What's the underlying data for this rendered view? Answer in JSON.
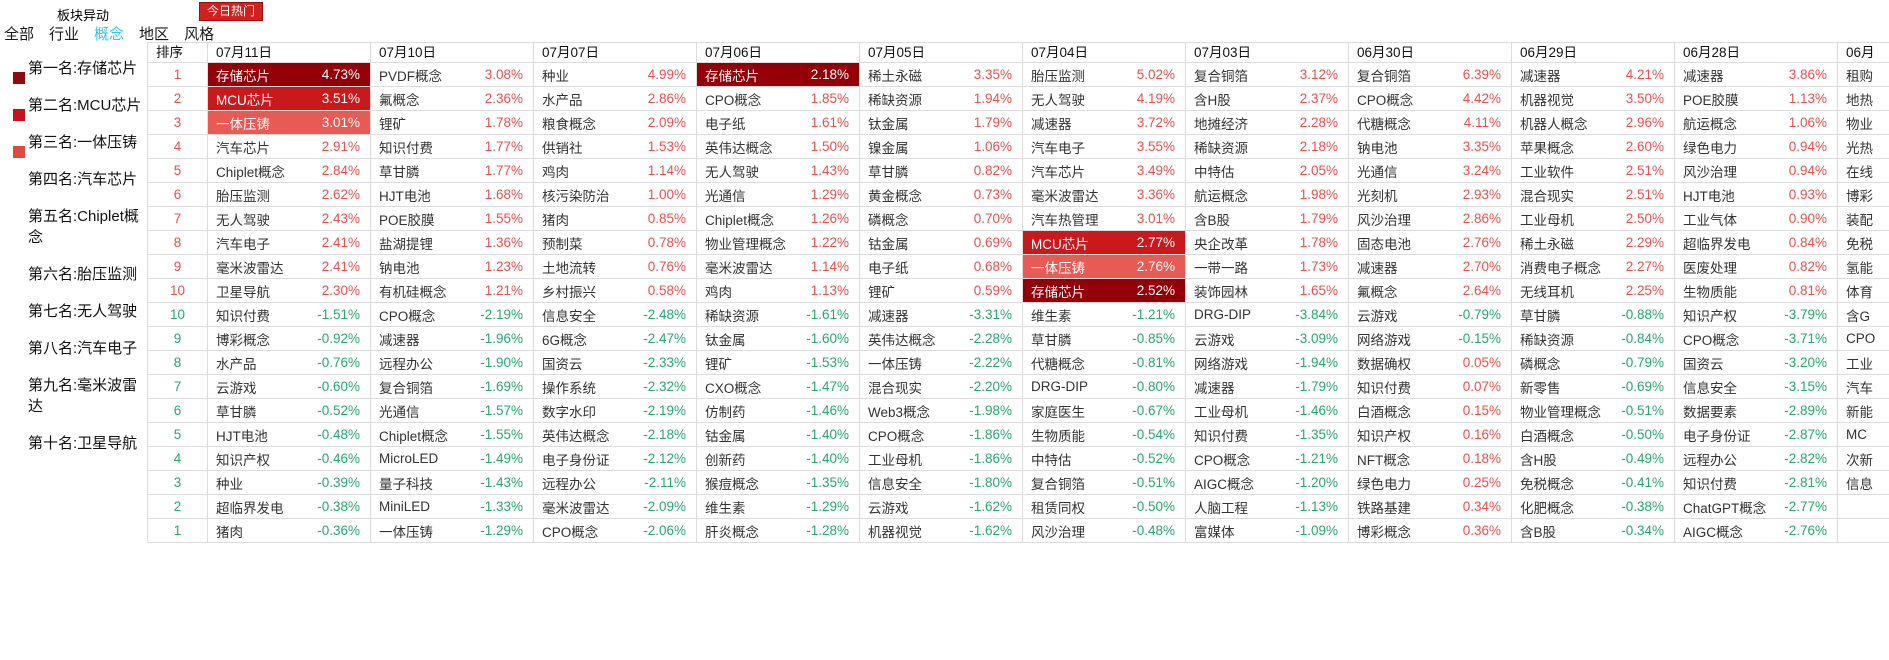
{
  "page": {
    "title": "板块异动",
    "hot_badge": "今日热门"
  },
  "tabs": [
    {
      "label": "全部",
      "active": false
    },
    {
      "label": "行业",
      "active": false
    },
    {
      "label": "概念",
      "active": true
    },
    {
      "label": "地区",
      "active": false
    },
    {
      "label": "风格",
      "active": false
    }
  ],
  "sidebar": {
    "items": [
      {
        "label": "第一名:存储芯片"
      },
      {
        "label": "第二名:MCU芯片"
      },
      {
        "label": "第三名:一体压铸"
      },
      {
        "label": "第四名:汽车芯片"
      },
      {
        "label": "第五名:Chiplet概念"
      },
      {
        "label": "第六名:胎压监测"
      },
      {
        "label": "第七名:无人驾驶"
      },
      {
        "label": "第八名:汽车电子"
      },
      {
        "label": "第九名:毫米波雷达"
      },
      {
        "label": "第十名:卫星导航"
      }
    ]
  },
  "table": {
    "rank_header": "排序",
    "ranks_up": [
      "1",
      "2",
      "3",
      "4",
      "5",
      "6",
      "7",
      "8",
      "9",
      "10"
    ],
    "ranks_down": [
      "10",
      "9",
      "8",
      "7",
      "6",
      "5",
      "4",
      "3",
      "2",
      "1"
    ],
    "columns": [
      {
        "date": "07月11日",
        "up": [
          {
            "n": "存储芯片",
            "v": "4.73%",
            "hl": "dark"
          },
          {
            "n": "MCU芯片",
            "v": "3.51%",
            "hl": "mid"
          },
          {
            "n": "一体压铸",
            "v": "3.01%",
            "hl": "light"
          },
          {
            "n": "汽车芯片",
            "v": "2.91%"
          },
          {
            "n": "Chiplet概念",
            "v": "2.84%"
          },
          {
            "n": "胎压监测",
            "v": "2.62%"
          },
          {
            "n": "无人驾驶",
            "v": "2.43%"
          },
          {
            "n": "汽车电子",
            "v": "2.41%"
          },
          {
            "n": "毫米波雷达",
            "v": "2.41%"
          },
          {
            "n": "卫星导航",
            "v": "2.30%"
          }
        ],
        "down": [
          {
            "n": "知识付费",
            "v": "-1.51%"
          },
          {
            "n": "博彩概念",
            "v": "-0.92%"
          },
          {
            "n": "水产品",
            "v": "-0.76%"
          },
          {
            "n": "云游戏",
            "v": "-0.60%"
          },
          {
            "n": "草甘膦",
            "v": "-0.52%"
          },
          {
            "n": "HJT电池",
            "v": "-0.48%"
          },
          {
            "n": "知识产权",
            "v": "-0.46%"
          },
          {
            "n": "种业",
            "v": "-0.39%"
          },
          {
            "n": "超临界发电",
            "v": "-0.38%"
          },
          {
            "n": "猪肉",
            "v": "-0.36%"
          }
        ]
      },
      {
        "date": "07月10日",
        "up": [
          {
            "n": "PVDF概念",
            "v": "3.08%"
          },
          {
            "n": "氟概念",
            "v": "2.36%"
          },
          {
            "n": "锂矿",
            "v": "1.78%"
          },
          {
            "n": "知识付费",
            "v": "1.77%"
          },
          {
            "n": "草甘膦",
            "v": "1.77%"
          },
          {
            "n": "HJT电池",
            "v": "1.68%"
          },
          {
            "n": "POE胶膜",
            "v": "1.55%"
          },
          {
            "n": "盐湖提锂",
            "v": "1.36%"
          },
          {
            "n": "钠电池",
            "v": "1.23%"
          },
          {
            "n": "有机硅概念",
            "v": "1.21%"
          }
        ],
        "down": [
          {
            "n": "CPO概念",
            "v": "-2.19%"
          },
          {
            "n": "减速器",
            "v": "-1.96%"
          },
          {
            "n": "远程办公",
            "v": "-1.90%"
          },
          {
            "n": "复合铜箔",
            "v": "-1.69%"
          },
          {
            "n": "光通信",
            "v": "-1.57%"
          },
          {
            "n": "Chiplet概念",
            "v": "-1.55%"
          },
          {
            "n": "MicroLED",
            "v": "-1.49%"
          },
          {
            "n": "量子科技",
            "v": "-1.43%"
          },
          {
            "n": "MiniLED",
            "v": "-1.33%"
          },
          {
            "n": "一体压铸",
            "v": "-1.29%"
          }
        ]
      },
      {
        "date": "07月07日",
        "up": [
          {
            "n": "种业",
            "v": "4.99%"
          },
          {
            "n": "水产品",
            "v": "2.86%"
          },
          {
            "n": "粮食概念",
            "v": "2.09%"
          },
          {
            "n": "供销社",
            "v": "1.53%"
          },
          {
            "n": "鸡肉",
            "v": "1.14%"
          },
          {
            "n": "核污染防治",
            "v": "1.00%"
          },
          {
            "n": "猪肉",
            "v": "0.85%"
          },
          {
            "n": "预制菜",
            "v": "0.78%"
          },
          {
            "n": "土地流转",
            "v": "0.76%"
          },
          {
            "n": "乡村振兴",
            "v": "0.58%"
          }
        ],
        "down": [
          {
            "n": "信息安全",
            "v": "-2.48%"
          },
          {
            "n": "6G概念",
            "v": "-2.47%"
          },
          {
            "n": "国资云",
            "v": "-2.33%"
          },
          {
            "n": "操作系统",
            "v": "-2.32%"
          },
          {
            "n": "数字水印",
            "v": "-2.19%"
          },
          {
            "n": "英伟达概念",
            "v": "-2.18%"
          },
          {
            "n": "电子身份证",
            "v": "-2.12%"
          },
          {
            "n": "远程办公",
            "v": "-2.11%"
          },
          {
            "n": "毫米波雷达",
            "v": "-2.09%"
          },
          {
            "n": "CPO概念",
            "v": "-2.06%"
          }
        ]
      },
      {
        "date": "07月06日",
        "up": [
          {
            "n": "存储芯片",
            "v": "2.18%",
            "hl": "dark"
          },
          {
            "n": "CPO概念",
            "v": "1.85%"
          },
          {
            "n": "电子纸",
            "v": "1.61%"
          },
          {
            "n": "英伟达概念",
            "v": "1.50%"
          },
          {
            "n": "无人驾驶",
            "v": "1.43%"
          },
          {
            "n": "光通信",
            "v": "1.29%"
          },
          {
            "n": "Chiplet概念",
            "v": "1.26%"
          },
          {
            "n": "物业管理概念",
            "v": "1.22%"
          },
          {
            "n": "毫米波雷达",
            "v": "1.14%"
          },
          {
            "n": "鸡肉",
            "v": "1.13%"
          }
        ],
        "down": [
          {
            "n": "稀缺资源",
            "v": "-1.61%"
          },
          {
            "n": "钛金属",
            "v": "-1.60%"
          },
          {
            "n": "锂矿",
            "v": "-1.53%"
          },
          {
            "n": "CXO概念",
            "v": "-1.47%"
          },
          {
            "n": "仿制药",
            "v": "-1.46%"
          },
          {
            "n": "钴金属",
            "v": "-1.40%"
          },
          {
            "n": "创新药",
            "v": "-1.40%"
          },
          {
            "n": "猴痘概念",
            "v": "-1.35%"
          },
          {
            "n": "维生素",
            "v": "-1.29%"
          },
          {
            "n": "肝炎概念",
            "v": "-1.28%"
          }
        ]
      },
      {
        "date": "07月05日",
        "up": [
          {
            "n": "稀土永磁",
            "v": "3.35%"
          },
          {
            "n": "稀缺资源",
            "v": "1.94%"
          },
          {
            "n": "钛金属",
            "v": "1.79%"
          },
          {
            "n": "镍金属",
            "v": "1.06%"
          },
          {
            "n": "草甘膦",
            "v": "0.82%"
          },
          {
            "n": "黄金概念",
            "v": "0.73%"
          },
          {
            "n": "磷概念",
            "v": "0.70%"
          },
          {
            "n": "钴金属",
            "v": "0.69%"
          },
          {
            "n": "电子纸",
            "v": "0.68%"
          },
          {
            "n": "锂矿",
            "v": "0.59%"
          }
        ],
        "down": [
          {
            "n": "减速器",
            "v": "-3.31%"
          },
          {
            "n": "英伟达概念",
            "v": "-2.28%"
          },
          {
            "n": "一体压铸",
            "v": "-2.22%"
          },
          {
            "n": "混合现实",
            "v": "-2.20%"
          },
          {
            "n": "Web3概念",
            "v": "-1.98%"
          },
          {
            "n": "CPO概念",
            "v": "-1.86%"
          },
          {
            "n": "工业母机",
            "v": "-1.86%"
          },
          {
            "n": "信息安全",
            "v": "-1.80%"
          },
          {
            "n": "云游戏",
            "v": "-1.62%"
          },
          {
            "n": "机器视觉",
            "v": "-1.62%"
          }
        ]
      },
      {
        "date": "07月04日",
        "up": [
          {
            "n": "胎压监测",
            "v": "5.02%"
          },
          {
            "n": "无人驾驶",
            "v": "4.19%"
          },
          {
            "n": "减速器",
            "v": "3.72%"
          },
          {
            "n": "汽车电子",
            "v": "3.55%"
          },
          {
            "n": "汽车芯片",
            "v": "3.49%"
          },
          {
            "n": "毫米波雷达",
            "v": "3.36%"
          },
          {
            "n": "汽车热管理",
            "v": "3.01%"
          },
          {
            "n": "MCU芯片",
            "v": "2.77%",
            "hl": "mid"
          },
          {
            "n": "一体压铸",
            "v": "2.76%",
            "hl": "light"
          },
          {
            "n": "存储芯片",
            "v": "2.52%",
            "hl": "dark"
          }
        ],
        "down": [
          {
            "n": "维生素",
            "v": "-1.21%"
          },
          {
            "n": "草甘膦",
            "v": "-0.85%"
          },
          {
            "n": "代糖概念",
            "v": "-0.81%"
          },
          {
            "n": "DRG-DIP",
            "v": "-0.80%"
          },
          {
            "n": "家庭医生",
            "v": "-0.67%"
          },
          {
            "n": "生物质能",
            "v": "-0.54%"
          },
          {
            "n": "中特估",
            "v": "-0.52%"
          },
          {
            "n": "复合铜箔",
            "v": "-0.51%"
          },
          {
            "n": "租赁同权",
            "v": "-0.50%"
          },
          {
            "n": "风沙治理",
            "v": "-0.48%"
          }
        ]
      },
      {
        "date": "07月03日",
        "up": [
          {
            "n": "复合铜箔",
            "v": "3.12%"
          },
          {
            "n": "含H股",
            "v": "2.37%"
          },
          {
            "n": "地摊经济",
            "v": "2.28%"
          },
          {
            "n": "稀缺资源",
            "v": "2.18%"
          },
          {
            "n": "中特估",
            "v": "2.05%"
          },
          {
            "n": "航运概念",
            "v": "1.98%"
          },
          {
            "n": "含B股",
            "v": "1.79%"
          },
          {
            "n": "央企改革",
            "v": "1.78%"
          },
          {
            "n": "一带一路",
            "v": "1.73%"
          },
          {
            "n": "装饰园林",
            "v": "1.65%"
          }
        ],
        "down": [
          {
            "n": "DRG-DIP",
            "v": "-3.84%"
          },
          {
            "n": "云游戏",
            "v": "-3.09%"
          },
          {
            "n": "网络游戏",
            "v": "-1.94%"
          },
          {
            "n": "减速器",
            "v": "-1.79%"
          },
          {
            "n": "工业母机",
            "v": "-1.46%"
          },
          {
            "n": "知识付费",
            "v": "-1.35%"
          },
          {
            "n": "CPO概念",
            "v": "-1.21%"
          },
          {
            "n": "AIGC概念",
            "v": "-1.20%"
          },
          {
            "n": "人脑工程",
            "v": "-1.13%"
          },
          {
            "n": "富媒体",
            "v": "-1.09%"
          }
        ]
      },
      {
        "date": "06月30日",
        "up": [
          {
            "n": "复合铜箔",
            "v": "6.39%"
          },
          {
            "n": "CPO概念",
            "v": "4.42%"
          },
          {
            "n": "代糖概念",
            "v": "4.11%"
          },
          {
            "n": "钠电池",
            "v": "3.35%"
          },
          {
            "n": "光通信",
            "v": "3.24%"
          },
          {
            "n": "光刻机",
            "v": "2.93%"
          },
          {
            "n": "风沙治理",
            "v": "2.86%"
          },
          {
            "n": "固态电池",
            "v": "2.76%"
          },
          {
            "n": "减速器",
            "v": "2.70%"
          },
          {
            "n": "氟概念",
            "v": "2.64%"
          }
        ],
        "down": [
          {
            "n": "云游戏",
            "v": "-0.79%"
          },
          {
            "n": "网络游戏",
            "v": "-0.15%"
          },
          {
            "n": "数据确权",
            "v": "0.05%"
          },
          {
            "n": "知识付费",
            "v": "0.07%"
          },
          {
            "n": "白酒概念",
            "v": "0.15%"
          },
          {
            "n": "知识产权",
            "v": "0.16%"
          },
          {
            "n": "NFT概念",
            "v": "0.18%"
          },
          {
            "n": "绿色电力",
            "v": "0.25%"
          },
          {
            "n": "铁路基建",
            "v": "0.34%"
          },
          {
            "n": "博彩概念",
            "v": "0.36%"
          }
        ]
      },
      {
        "date": "06月29日",
        "up": [
          {
            "n": "减速器",
            "v": "4.21%"
          },
          {
            "n": "机器视觉",
            "v": "3.50%"
          },
          {
            "n": "机器人概念",
            "v": "2.96%"
          },
          {
            "n": "苹果概念",
            "v": "2.60%"
          },
          {
            "n": "工业软件",
            "v": "2.51%"
          },
          {
            "n": "混合现实",
            "v": "2.51%"
          },
          {
            "n": "工业母机",
            "v": "2.50%"
          },
          {
            "n": "稀土永磁",
            "v": "2.29%"
          },
          {
            "n": "消费电子概念",
            "v": "2.27%"
          },
          {
            "n": "无线耳机",
            "v": "2.25%"
          }
        ],
        "down": [
          {
            "n": "草甘膦",
            "v": "-0.88%"
          },
          {
            "n": "稀缺资源",
            "v": "-0.84%"
          },
          {
            "n": "磷概念",
            "v": "-0.79%"
          },
          {
            "n": "新零售",
            "v": "-0.69%"
          },
          {
            "n": "物业管理概念",
            "v": "-0.51%"
          },
          {
            "n": "白酒概念",
            "v": "-0.50%"
          },
          {
            "n": "含H股",
            "v": "-0.49%"
          },
          {
            "n": "免税概念",
            "v": "-0.41%"
          },
          {
            "n": "化肥概念",
            "v": "-0.38%"
          },
          {
            "n": "含B股",
            "v": "-0.34%"
          }
        ]
      },
      {
        "date": "06月28日",
        "up": [
          {
            "n": "减速器",
            "v": "3.86%"
          },
          {
            "n": "POE胶膜",
            "v": "1.13%"
          },
          {
            "n": "航运概念",
            "v": "1.06%"
          },
          {
            "n": "绿色电力",
            "v": "0.94%"
          },
          {
            "n": "风沙治理",
            "v": "0.94%"
          },
          {
            "n": "HJT电池",
            "v": "0.93%"
          },
          {
            "n": "工业气体",
            "v": "0.90%"
          },
          {
            "n": "超临界发电",
            "v": "0.84%"
          },
          {
            "n": "医废处理",
            "v": "0.82%"
          },
          {
            "n": "生物质能",
            "v": "0.81%"
          }
        ],
        "down": [
          {
            "n": "知识产权",
            "v": "-3.79%"
          },
          {
            "n": "CPO概念",
            "v": "-3.71%"
          },
          {
            "n": "国资云",
            "v": "-3.20%"
          },
          {
            "n": "信息安全",
            "v": "-3.15%"
          },
          {
            "n": "数据要素",
            "v": "-2.89%"
          },
          {
            "n": "电子身份证",
            "v": "-2.87%"
          },
          {
            "n": "远程办公",
            "v": "-2.82%"
          },
          {
            "n": "知识付费",
            "v": "-2.81%"
          },
          {
            "n": "ChatGPT概念",
            "v": "-2.77%"
          },
          {
            "n": "AIGC概念",
            "v": "-2.76%"
          }
        ]
      },
      {
        "date": "06月",
        "partial": true,
        "up": [
          {
            "n": "租购"
          },
          {
            "n": "地热"
          },
          {
            "n": "物业"
          },
          {
            "n": "光热"
          },
          {
            "n": "在线"
          },
          {
            "n": "博彩"
          },
          {
            "n": "装配"
          },
          {
            "n": "免税"
          },
          {
            "n": "氢能"
          },
          {
            "n": "体育"
          }
        ],
        "down": [
          {
            "n": "含G"
          },
          {
            "n": "CPO"
          },
          {
            "n": "工业"
          },
          {
            "n": "汽车"
          },
          {
            "n": "新能"
          },
          {
            "n": "MC"
          },
          {
            "n": "次新"
          },
          {
            "n": "信息"
          },
          {
            "n": ""
          },
          {
            "n": ""
          }
        ]
      }
    ]
  },
  "colors": {
    "badge-bg": "#cf221f",
    "tab-active": "#38c4e8",
    "pos": "#e8504f",
    "neg": "#27a770",
    "hl-dark": "#940008",
    "hl-mid": "#c9191d",
    "hl-light": "#e85a54",
    "bullet-1": "#8f0a0e",
    "bullet-2": "#c3121a",
    "bullet-3": "#dd4b47",
    "border": "#dcdcdc"
  }
}
